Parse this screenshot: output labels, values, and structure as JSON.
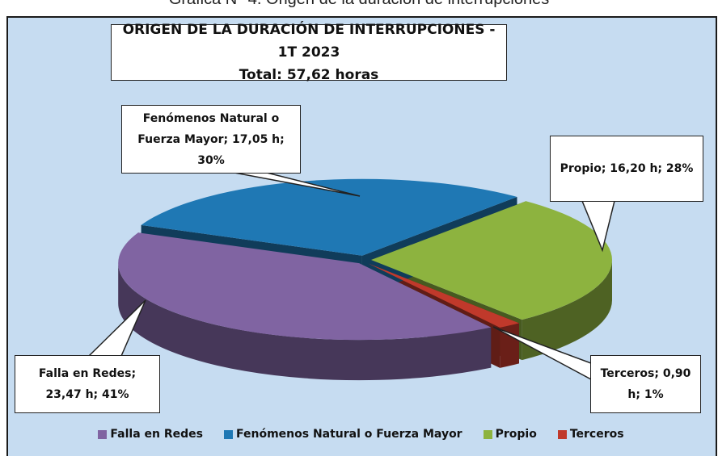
{
  "caption": "Gráfica N° 4. Origen de la duración de interrupciones",
  "chart_data": {
    "type": "pie",
    "three_d": true,
    "title": "ORIGEN DE LA DURACIÓN DE INTERRUPCIONES - 1T 2023",
    "subtitle": "Total: 57,62 horas",
    "categories": [
      "Falla en Redes",
      "Fenómenos Natural o Fuerza Mayor",
      "Propio",
      "Terceros"
    ],
    "values": [
      23.47,
      17.05,
      16.2,
      0.9
    ],
    "value_labels": [
      "Falla en Redes; 23,47 h; 41%",
      "Fenómenos Natural o Fuerza Mayor; 17,05 h; 30%",
      "Propio; 16,20 h; 28%",
      "Terceros; 0,90 h; 1%"
    ],
    "colors": [
      "#8064a2",
      "#1f78b4",
      "#8db33f",
      "#c0392b"
    ],
    "legend": "bottom"
  }
}
